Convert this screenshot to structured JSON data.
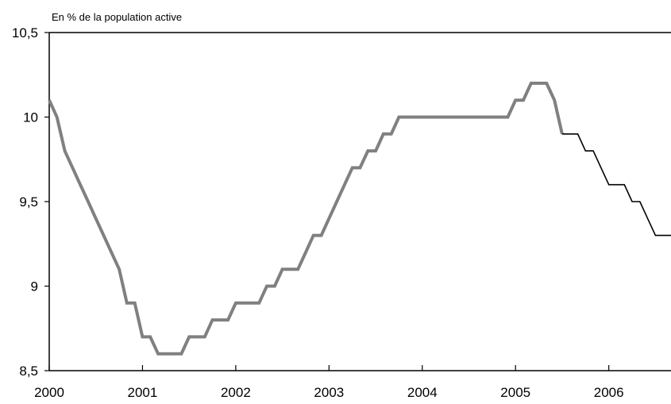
{
  "chart_data": {
    "type": "line",
    "title": "",
    "ylabel": "En % de la population active",
    "xlabel": "",
    "x_ticks": [
      "2000",
      "2001",
      "2002",
      "2003",
      "2004",
      "2005",
      "2006"
    ],
    "y_ticks": [
      "8,5",
      "9",
      "9,5",
      "10",
      "10,5"
    ],
    "xlim": [
      2000.0,
      2006.667
    ],
    "ylim": [
      8.5,
      10.5
    ],
    "grid": false,
    "legend": "none",
    "series": [
      {
        "color": "#808080",
        "style": "thick",
        "points": [
          [
            2000.0,
            10.1
          ],
          [
            2000.083,
            10.0
          ],
          [
            2000.167,
            9.8
          ],
          [
            2000.25,
            9.7
          ],
          [
            2000.333,
            9.6
          ],
          [
            2000.417,
            9.5
          ],
          [
            2000.5,
            9.4
          ],
          [
            2000.583,
            9.3
          ],
          [
            2000.667,
            9.2
          ],
          [
            2000.75,
            9.1
          ],
          [
            2000.833,
            8.9
          ],
          [
            2000.917,
            8.9
          ],
          [
            2001.0,
            8.7
          ],
          [
            2001.083,
            8.7
          ],
          [
            2001.167,
            8.6
          ],
          [
            2001.25,
            8.6
          ],
          [
            2001.333,
            8.6
          ],
          [
            2001.417,
            8.6
          ],
          [
            2001.5,
            8.7
          ],
          [
            2001.583,
            8.7
          ],
          [
            2001.667,
            8.7
          ],
          [
            2001.75,
            8.8
          ],
          [
            2001.833,
            8.8
          ],
          [
            2001.917,
            8.8
          ],
          [
            2002.0,
            8.9
          ],
          [
            2002.083,
            8.9
          ],
          [
            2002.167,
            8.9
          ],
          [
            2002.25,
            8.9
          ],
          [
            2002.333,
            9.0
          ],
          [
            2002.417,
            9.0
          ],
          [
            2002.5,
            9.1
          ],
          [
            2002.583,
            9.1
          ],
          [
            2002.667,
            9.1
          ],
          [
            2002.75,
            9.2
          ],
          [
            2002.833,
            9.3
          ],
          [
            2002.917,
            9.3
          ],
          [
            2003.0,
            9.4
          ],
          [
            2003.083,
            9.5
          ],
          [
            2003.167,
            9.6
          ],
          [
            2003.25,
            9.7
          ],
          [
            2003.333,
            9.7
          ],
          [
            2003.417,
            9.8
          ],
          [
            2003.5,
            9.8
          ],
          [
            2003.583,
            9.9
          ],
          [
            2003.667,
            9.9
          ],
          [
            2003.75,
            10.0
          ],
          [
            2003.833,
            10.0
          ],
          [
            2003.917,
            10.0
          ],
          [
            2004.0,
            10.0
          ],
          [
            2004.083,
            10.0
          ],
          [
            2004.167,
            10.0
          ],
          [
            2004.25,
            10.0
          ],
          [
            2004.333,
            10.0
          ],
          [
            2004.417,
            10.0
          ],
          [
            2004.5,
            10.0
          ],
          [
            2004.583,
            10.0
          ],
          [
            2004.667,
            10.0
          ],
          [
            2004.75,
            10.0
          ],
          [
            2004.833,
            10.0
          ],
          [
            2004.917,
            10.0
          ],
          [
            2005.0,
            10.1
          ],
          [
            2005.083,
            10.1
          ],
          [
            2005.167,
            10.2
          ],
          [
            2005.25,
            10.2
          ],
          [
            2005.333,
            10.2
          ],
          [
            2005.417,
            10.1
          ],
          [
            2005.5,
            9.9
          ]
        ]
      },
      {
        "color": "#000000",
        "style": "thin",
        "points": [
          [
            2005.5,
            9.9
          ],
          [
            2005.583,
            9.9
          ],
          [
            2005.667,
            9.9
          ],
          [
            2005.75,
            9.8
          ],
          [
            2005.833,
            9.8
          ],
          [
            2005.917,
            9.7
          ],
          [
            2006.0,
            9.6
          ],
          [
            2006.083,
            9.6
          ],
          [
            2006.167,
            9.6
          ],
          [
            2006.25,
            9.5
          ],
          [
            2006.333,
            9.5
          ],
          [
            2006.417,
            9.4
          ],
          [
            2006.5,
            9.3
          ],
          [
            2006.583,
            9.3
          ],
          [
            2006.667,
            9.3
          ]
        ]
      }
    ]
  }
}
